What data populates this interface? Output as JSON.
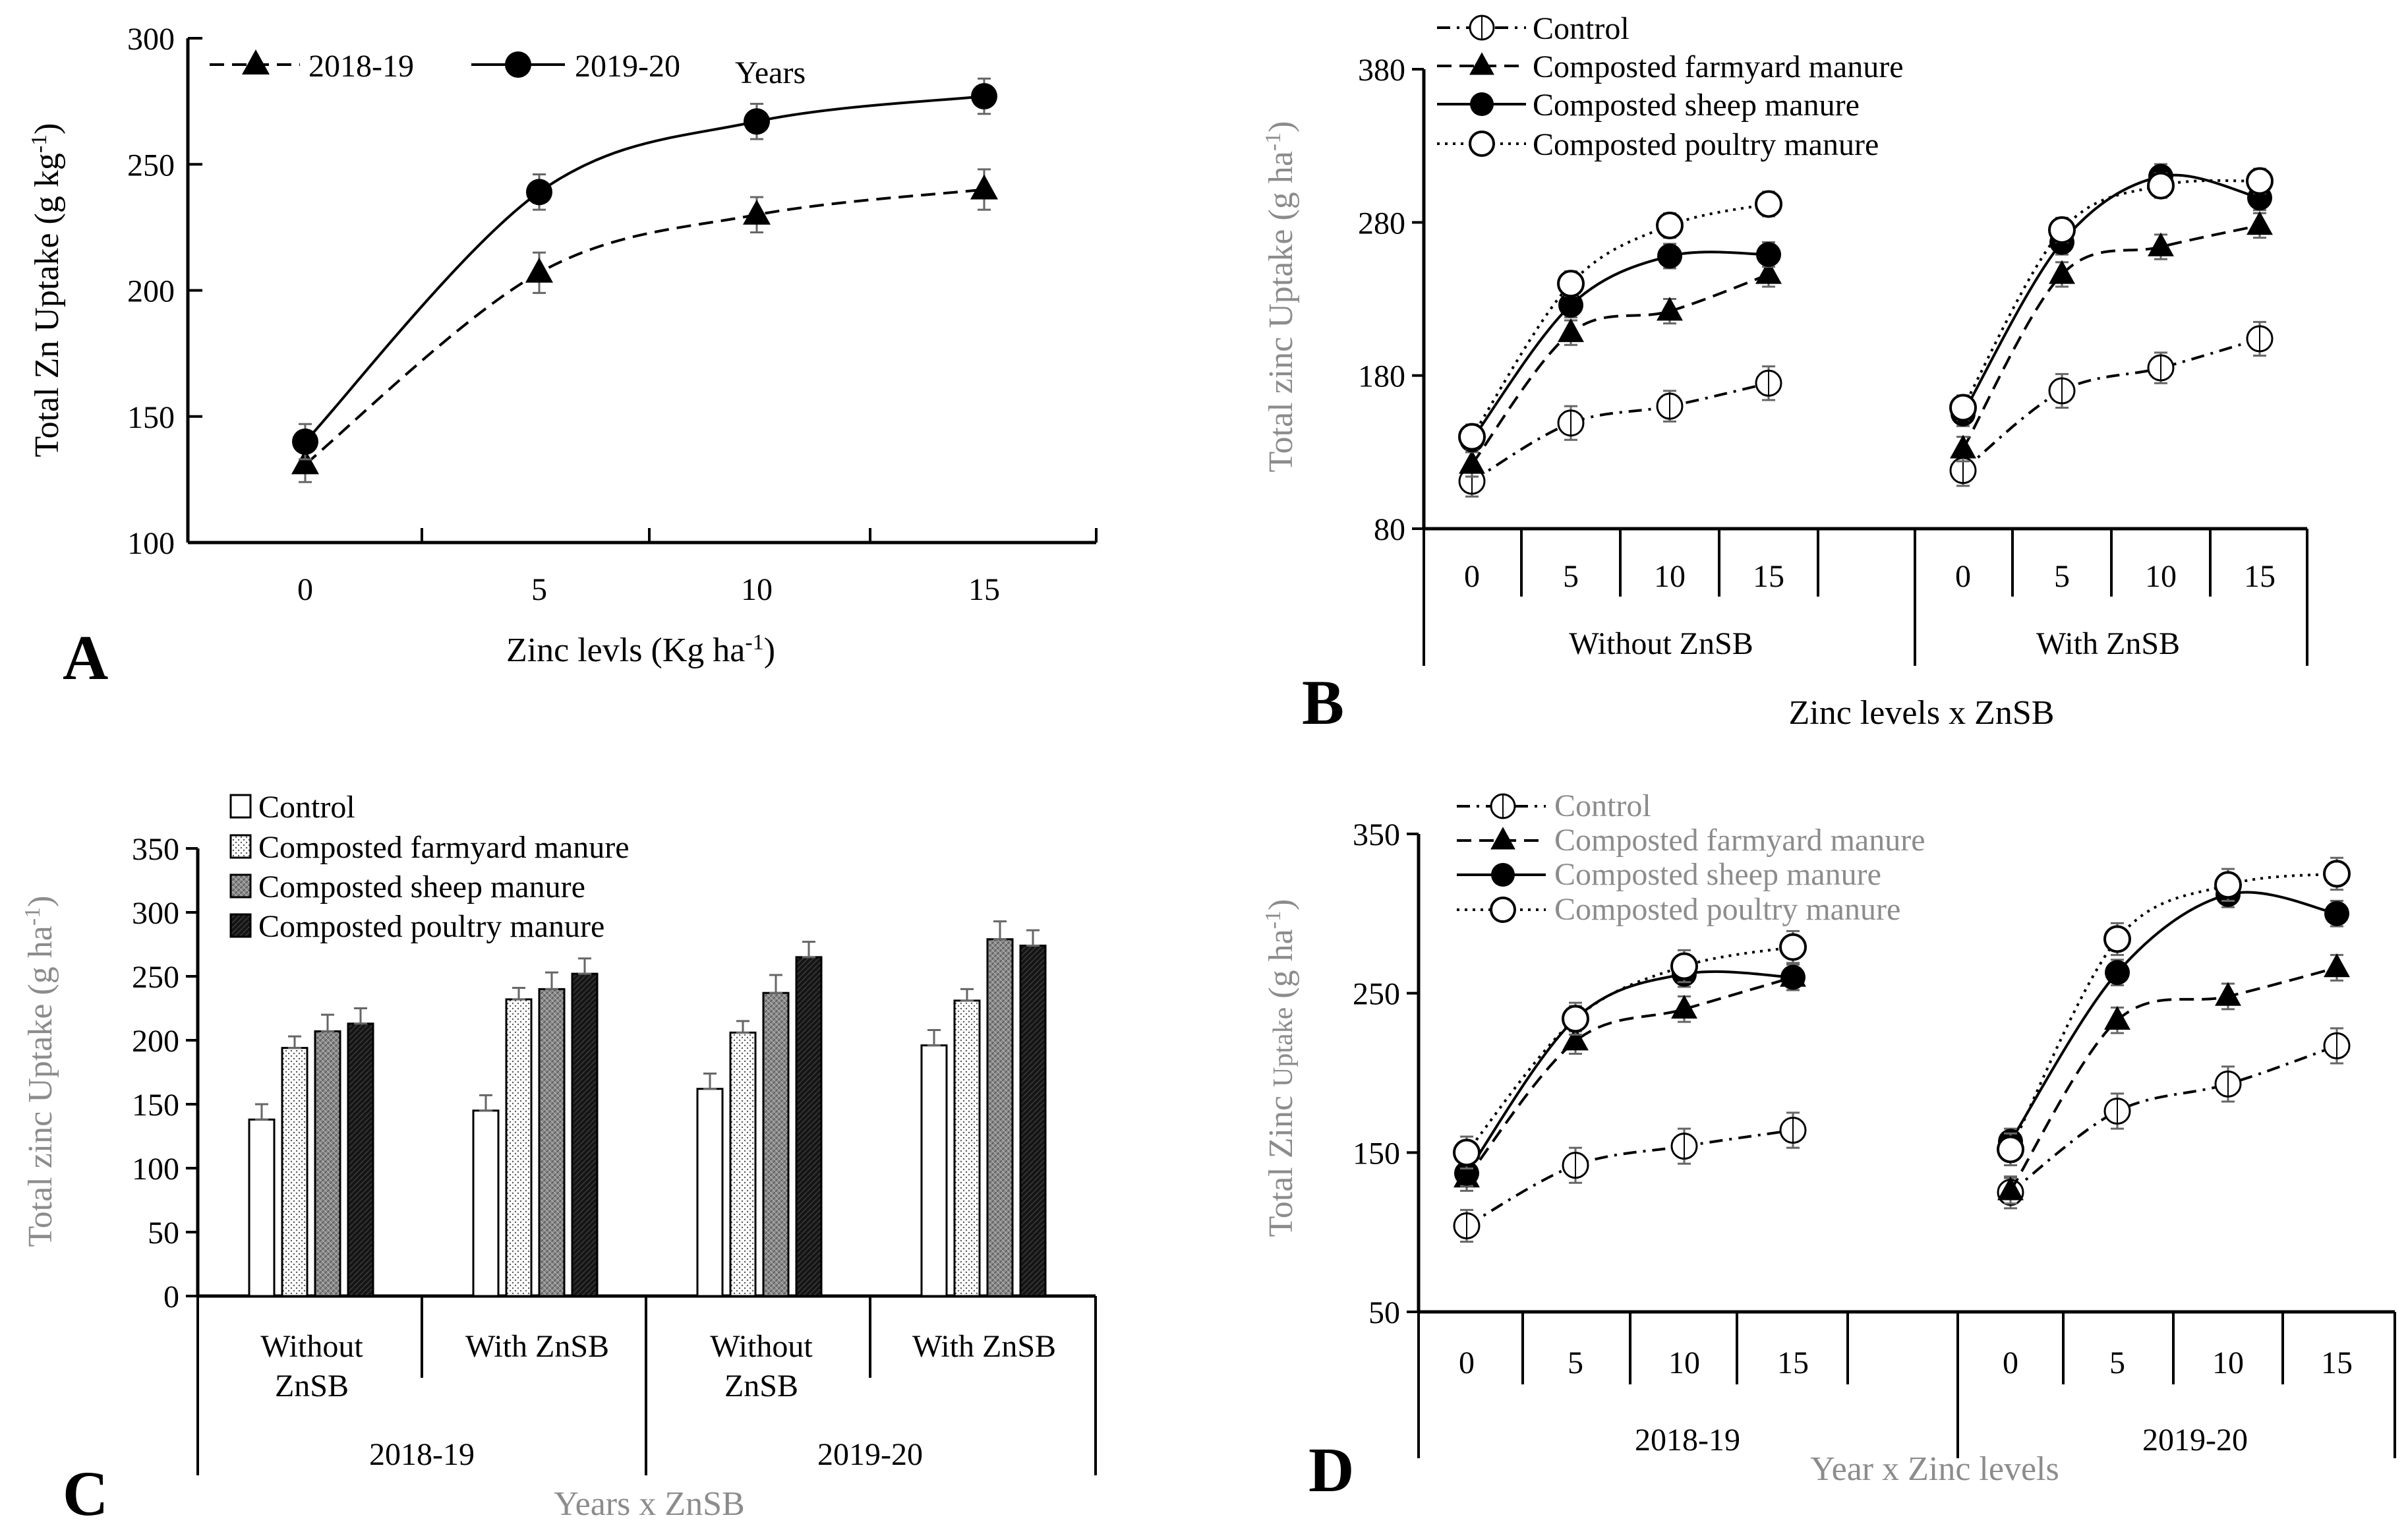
{
  "chart_data": [
    {
      "panel": "A",
      "type": "line",
      "ylabel_main": "Total Zn Uptake (g kg",
      "ylabel_sup": "-1",
      "ylabel_end": ")",
      "xlabel_main": "Zinc levls (Kg ha",
      "xlabel_sup": "-1",
      "xlabel_end": ")",
      "legend_title": "Years",
      "ylim": [
        100,
        300
      ],
      "yticks": [
        "100",
        "150",
        "200",
        "250",
        "300"
      ],
      "categories": [
        "0",
        "5",
        "10",
        "15"
      ],
      "series": [
        {
          "name": "2018-19",
          "marker": "triangle",
          "dash": "dashed",
          "values": [
            131,
            207,
            230,
            240
          ],
          "err": [
            7,
            8,
            7,
            8
          ]
        },
        {
          "name": "2019-20",
          "marker": "filled-circle",
          "dash": "solid",
          "values": [
            140,
            239,
            267,
            277
          ],
          "err": [
            7,
            7,
            7,
            7
          ]
        }
      ]
    },
    {
      "panel": "B",
      "type": "line",
      "ylabel_main": "Total zinc Uptake (g ha",
      "ylabel_sup": "-1",
      "ylabel_end": ")",
      "xlabel": "Zinc levels x ZnSB",
      "ylim": [
        80,
        380
      ],
      "yticks": [
        "80",
        "180",
        "280",
        "380"
      ],
      "groups": [
        "Without ZnSB",
        "With ZnSB"
      ],
      "categories": [
        "0",
        "5",
        "10",
        "15"
      ],
      "series": [
        {
          "name": "Control",
          "marker": "dashed-open-circle",
          "dash": "dashdot",
          "values": [
            [
              111,
              149,
              160,
              175
            ],
            [
              118,
              170,
              185,
              204
            ]
          ],
          "err": [
            10,
            11,
            10,
            11
          ]
        },
        {
          "name": "Composted farmyard manure",
          "marker": "triangle",
          "dash": "dashed",
          "values": [
            [
              122,
              208,
              222,
              246
            ],
            [
              132,
              246,
              264,
              278
            ]
          ],
          "err": [
            8,
            8,
            8,
            8
          ]
        },
        {
          "name": "Composted sheep manure",
          "marker": "filled-circle",
          "dash": "solid",
          "values": [
            [
              138,
              226,
              258,
              259
            ],
            [
              155,
              267,
              310,
              296
            ]
          ],
          "err": [
            8,
            8,
            8,
            8
          ]
        },
        {
          "name": "Composted poultry manure",
          "marker": "open-circle",
          "dash": "dotted",
          "values": [
            [
              140,
              240,
              278,
              292
            ],
            [
              159,
              275,
              304,
              307
            ]
          ],
          "err": [
            8,
            8,
            8,
            8
          ]
        }
      ]
    },
    {
      "panel": "C",
      "type": "bar",
      "ylabel_main": "Total zinc Uptake (g ha",
      "ylabel_sup": "-1",
      "ylabel_end": ")",
      "xlabel": "Years x ZnSB",
      "ylim": [
        0,
        350
      ],
      "yticks": [
        "0",
        "50",
        "100",
        "150",
        "200",
        "250",
        "300",
        "350"
      ],
      "groups": [
        "Without ZnSB",
        "With ZnSB",
        "Without ZnSB",
        "With ZnSB"
      ],
      "years": [
        "2018-19",
        "2019-20"
      ],
      "series": [
        {
          "name": "Control",
          "fill": "#ffffff",
          "values": [
            138,
            145,
            162,
            196
          ],
          "err": [
            12,
            12,
            12,
            12
          ]
        },
        {
          "name": "Composted farmyard manure",
          "fill": "#e8e8e8",
          "values": [
            194,
            232,
            206,
            231
          ],
          "err": [
            9,
            9,
            9,
            9
          ]
        },
        {
          "name": "Composted sheep manure",
          "fill": "#8c8c8c",
          "values": [
            207,
            240,
            237,
            279
          ],
          "err": [
            13,
            13,
            14,
            14
          ]
        },
        {
          "name": "Composted poultry manure",
          "fill": "#1a1a1a",
          "values": [
            213,
            252,
            265,
            274
          ],
          "err": [
            12,
            12,
            12,
            12
          ]
        }
      ]
    },
    {
      "panel": "D",
      "type": "line",
      "ylabel_main": "Total Zinc ",
      "ylabel_small": "Uptake",
      "ylabel_end": " (g ha",
      "ylabel_sup": "-1",
      "ylabel_close": ")",
      "xlabel": "Year x Zinc levels",
      "ylim": [
        50,
        350
      ],
      "yticks": [
        "50",
        "150",
        "250",
        "350"
      ],
      "groups": [
        "2018-19",
        "2019-20"
      ],
      "categories": [
        "0",
        "5",
        "10",
        "15"
      ],
      "series": [
        {
          "name": "Control",
          "marker": "dashed-open-circle",
          "dash": "dashdot",
          "values": [
            [
              104,
              142,
              154,
              164
            ],
            [
              125,
              176,
              193,
              217
            ]
          ],
          "err": [
            10,
            11,
            11,
            11
          ]
        },
        {
          "name": "Composted farmyard manure",
          "marker": "triangle",
          "dash": "dashed",
          "values": [
            [
              134,
              220,
              240,
              260
            ],
            [
              126,
              233,
              248,
              266
            ]
          ],
          "err": [
            8,
            8,
            8,
            8
          ]
        },
        {
          "name": "Composted sheep manure",
          "marker": "filled-circle",
          "dash": "solid",
          "values": [
            [
              137,
              234,
              262,
              260
            ],
            [
              157,
              263,
              312,
              300
            ]
          ],
          "err": [
            8,
            8,
            8,
            8
          ]
        },
        {
          "name": "Composted poultry manure",
          "marker": "open-circle",
          "dash": "dotted",
          "values": [
            [
              150,
              234,
              267,
              279
            ],
            [
              152,
              284,
              318,
              325
            ]
          ],
          "err": [
            10,
            10,
            10,
            10
          ]
        }
      ]
    }
  ]
}
